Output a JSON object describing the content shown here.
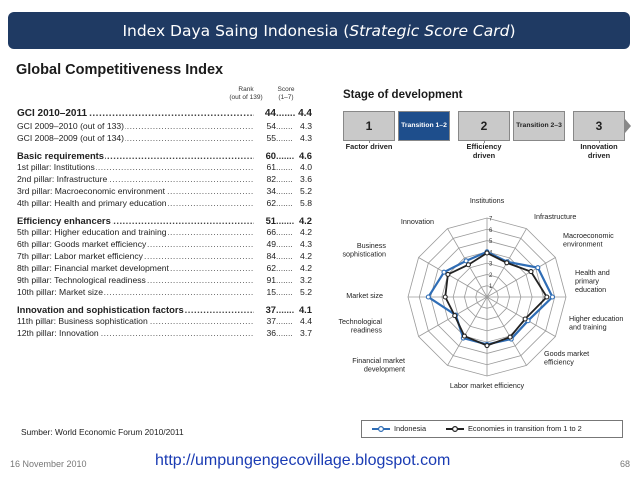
{
  "slide": {
    "title_main": "Index Daya Saing Indonesia (",
    "title_italic": "Strategic Score Card",
    "title_end": ")"
  },
  "table": {
    "title": "Global Competitiveness Index",
    "rank_header": "Rank",
    "rank_subheader": "(out of 139)",
    "score_header": "Score",
    "score_subheader": "(1–7)",
    "groups": [
      {
        "rows": [
          {
            "label": "GCI 2010–2011",
            "rank": "44",
            "score": "4.4",
            "style": "main"
          },
          {
            "label": "GCI 2009–2010 (out of 133)",
            "rank": "54",
            "score": "4.3",
            "style": "normal"
          },
          {
            "label": "GCI 2008–2009 (out of 134)",
            "rank": "55",
            "score": "4.3",
            "style": "normal"
          }
        ]
      },
      {
        "rows": [
          {
            "label": "Basic requirements",
            "rank": "60",
            "score": "4.6",
            "style": "bold"
          },
          {
            "label": "1st pillar: Institutions",
            "rank": "61",
            "score": "4.0",
            "style": "normal"
          },
          {
            "label": "2nd pillar: Infrastructure",
            "rank": "82",
            "score": "3.6",
            "style": "normal"
          },
          {
            "label": "3rd pillar: Macroeconomic environment",
            "rank": "34",
            "score": "5.2",
            "style": "normal"
          },
          {
            "label": "4th pillar: Health and primary education",
            "rank": "62",
            "score": "5.8",
            "style": "normal"
          }
        ]
      },
      {
        "rows": [
          {
            "label": "Efficiency enhancers",
            "rank": "51",
            "score": "4.2",
            "style": "bold"
          },
          {
            "label": "5th pillar: Higher education and training",
            "rank": "66",
            "score": "4.2",
            "style": "normal"
          },
          {
            "label": "6th pillar: Goods market efficiency",
            "rank": "49",
            "score": "4.3",
            "style": "normal"
          },
          {
            "label": "7th pillar: Labor market efficiency",
            "rank": "84",
            "score": "4.2",
            "style": "normal"
          },
          {
            "label": "8th pillar: Financial market development",
            "rank": "62",
            "score": "4.2",
            "style": "normal"
          },
          {
            "label": "9th pillar: Technological readiness",
            "rank": "91",
            "score": "3.2",
            "style": "normal"
          },
          {
            "label": "10th pillar: Market size",
            "rank": "15",
            "score": "5.2",
            "style": "normal"
          }
        ]
      },
      {
        "rows": [
          {
            "label": "Innovation and sophistication factors",
            "rank": "37",
            "score": "4.1",
            "style": "bold"
          },
          {
            "label": "11th pillar: Business sophistication",
            "rank": "37",
            "score": "4.4",
            "style": "normal"
          },
          {
            "label": "12th pillar: Innovation",
            "rank": "36",
            "score": "3.7",
            "style": "normal"
          }
        ]
      }
    ]
  },
  "stage": {
    "title": "Stage of development",
    "boxes": [
      {
        "label": "1",
        "active": false,
        "small": false
      },
      {
        "label": "Transition 1–2",
        "active": true,
        "small": true
      },
      {
        "label": "2",
        "active": false,
        "small": false
      },
      {
        "label": "Transition 2–3",
        "active": false,
        "small": true
      },
      {
        "label": "3",
        "active": false,
        "small": false
      }
    ],
    "labels": [
      "Factor driven",
      "Efficiency driven",
      "Innovation driven"
    ]
  },
  "chart_data": {
    "type": "radar",
    "axes": [
      "Institutions",
      "Infrastructure",
      "Macroeconomic environment",
      "Health and primary education",
      "Higher education and training",
      "Goods market efficiency",
      "Labor market efficiency",
      "Financial market development",
      "Technological readiness",
      "Market size",
      "Business sophistication",
      "Innovation"
    ],
    "ticks": [
      "1",
      "2",
      "3",
      "4",
      "5",
      "6",
      "7"
    ],
    "range": [
      1,
      7
    ],
    "series": [
      {
        "name": "Indonesia",
        "color": "#2f6db5",
        "values": [
          4.0,
          3.6,
          5.2,
          5.8,
          4.2,
          4.3,
          4.2,
          4.2,
          3.2,
          5.2,
          4.4,
          3.7
        ]
      },
      {
        "name": "Economies in transition from 1 to 2",
        "color": "#222222",
        "values": [
          3.9,
          3.5,
          4.5,
          5.3,
          3.9,
          4.1,
          4.3,
          4.0,
          3.3,
          3.7,
          4.0,
          3.3
        ]
      }
    ]
  },
  "source": "Sumber: World Economic Forum 2010/2011",
  "footer": {
    "date": "16 November 2010",
    "url": "http://umpungengecovillage.blogspot.com",
    "page": "68"
  }
}
